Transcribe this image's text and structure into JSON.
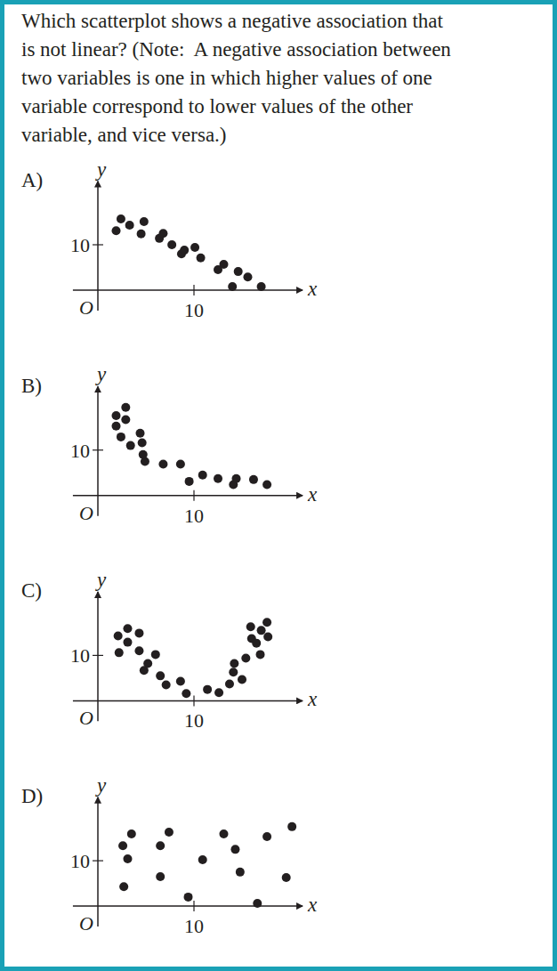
{
  "question_lines": [
    "Which scatterplot shows a negative association that",
    "is not linear? (Note:  A negative association between",
    "two variables is one in which higher values of one",
    "variable correspond to lower values of the other",
    "variable, and vice versa.)"
  ],
  "chart_data": [
    {
      "type": "scatter",
      "title": "A)",
      "x_label": "x",
      "y_label": "y",
      "origin_label": "O",
      "x": [
        1.9,
        2.4,
        3.3,
        4.5,
        4.8,
        6.4,
        6.8,
        7.7,
        8.7,
        9.0,
        10.1,
        10.7,
        12.5,
        13.1,
        14.0,
        14.6,
        15.6,
        17.0
      ],
      "values": [
        13.1,
        15.7,
        14.3,
        12.4,
        15.1,
        11.4,
        12.5,
        10.0,
        8.0,
        8.8,
        9.4,
        7.1,
        4.5,
        5.7,
        0.8,
        4.1,
        2.9,
        0.8
      ],
      "xlim": [
        -2.6,
        21.3
      ],
      "ylim": [
        -4.5,
        24
      ],
      "xticks": [
        10
      ],
      "yticks": [
        10
      ]
    },
    {
      "type": "scatter",
      "title": "B)",
      "x_label": "x",
      "y_label": "y",
      "origin_label": "O",
      "x": [
        1.9,
        2.9,
        1.9,
        2.9,
        2.4,
        3.4,
        4.4,
        4.6,
        4.9,
        4.7,
        6.8,
        8.6,
        9.5,
        10.9,
        12.5,
        14.1,
        14.4,
        16.2,
        17.6
      ],
      "values": [
        17.6,
        19.4,
        15.3,
        16.7,
        12.9,
        11.0,
        13.7,
        11.6,
        7.5,
        9.0,
        6.9,
        6.9,
        3.1,
        4.5,
        3.7,
        2.4,
        3.7,
        3.5,
        2.4
      ],
      "xlim": [
        -2.6,
        21.3
      ],
      "ylim": [
        -4.5,
        24
      ],
      "xticks": [
        10
      ],
      "yticks": [
        10
      ]
    },
    {
      "type": "scatter",
      "title": "C)",
      "x_label": "x",
      "y_label": "y",
      "origin_label": "O",
      "x": [
        2.1,
        3.1,
        3.1,
        2.2,
        4.3,
        4.3,
        5.2,
        6.0,
        4.8,
        6.5,
        7.1,
        8.6,
        9.2,
        11.4,
        12.6,
        13.7,
        14.2,
        14.1,
        15.0,
        15.4,
        15.9,
        16.0,
        16.5,
        16.9,
        17.0,
        17.6,
        17.7
      ],
      "values": [
        14.3,
        15.9,
        12.9,
        10.6,
        14.9,
        11.0,
        8.2,
        10.2,
        6.7,
        5.5,
        3.5,
        4.3,
        1.6,
        2.5,
        1.8,
        3.7,
        8.2,
        6.3,
        4.7,
        9.4,
        16.3,
        13.7,
        12.7,
        10.2,
        15.5,
        17.3,
        14.1
      ],
      "xlim": [
        -2.6,
        21.3
      ],
      "ylim": [
        -4.5,
        24
      ],
      "xticks": [
        10
      ],
      "yticks": [
        10
      ]
    },
    {
      "type": "scatter",
      "title": "D)",
      "x_label": "x",
      "y_label": "y",
      "origin_label": "O",
      "x": [
        2.6,
        3.5,
        3.1,
        2.7,
        6.5,
        7.4,
        6.5,
        9.4,
        10.9,
        13.1,
        14.3,
        14.8,
        16.6,
        17.6,
        19.6,
        20.2
      ],
      "values": [
        13.3,
        15.9,
        10.4,
        4.3,
        13.3,
        16.3,
        6.5,
        2.0,
        10.2,
        15.9,
        12.5,
        7.5,
        0.6,
        15.3,
        6.3,
        17.5
      ],
      "xlim": [
        -2.6,
        21.3
      ],
      "ylim": [
        -4.5,
        24
      ],
      "xticks": [
        10
      ],
      "yticks": [
        10
      ]
    }
  ]
}
